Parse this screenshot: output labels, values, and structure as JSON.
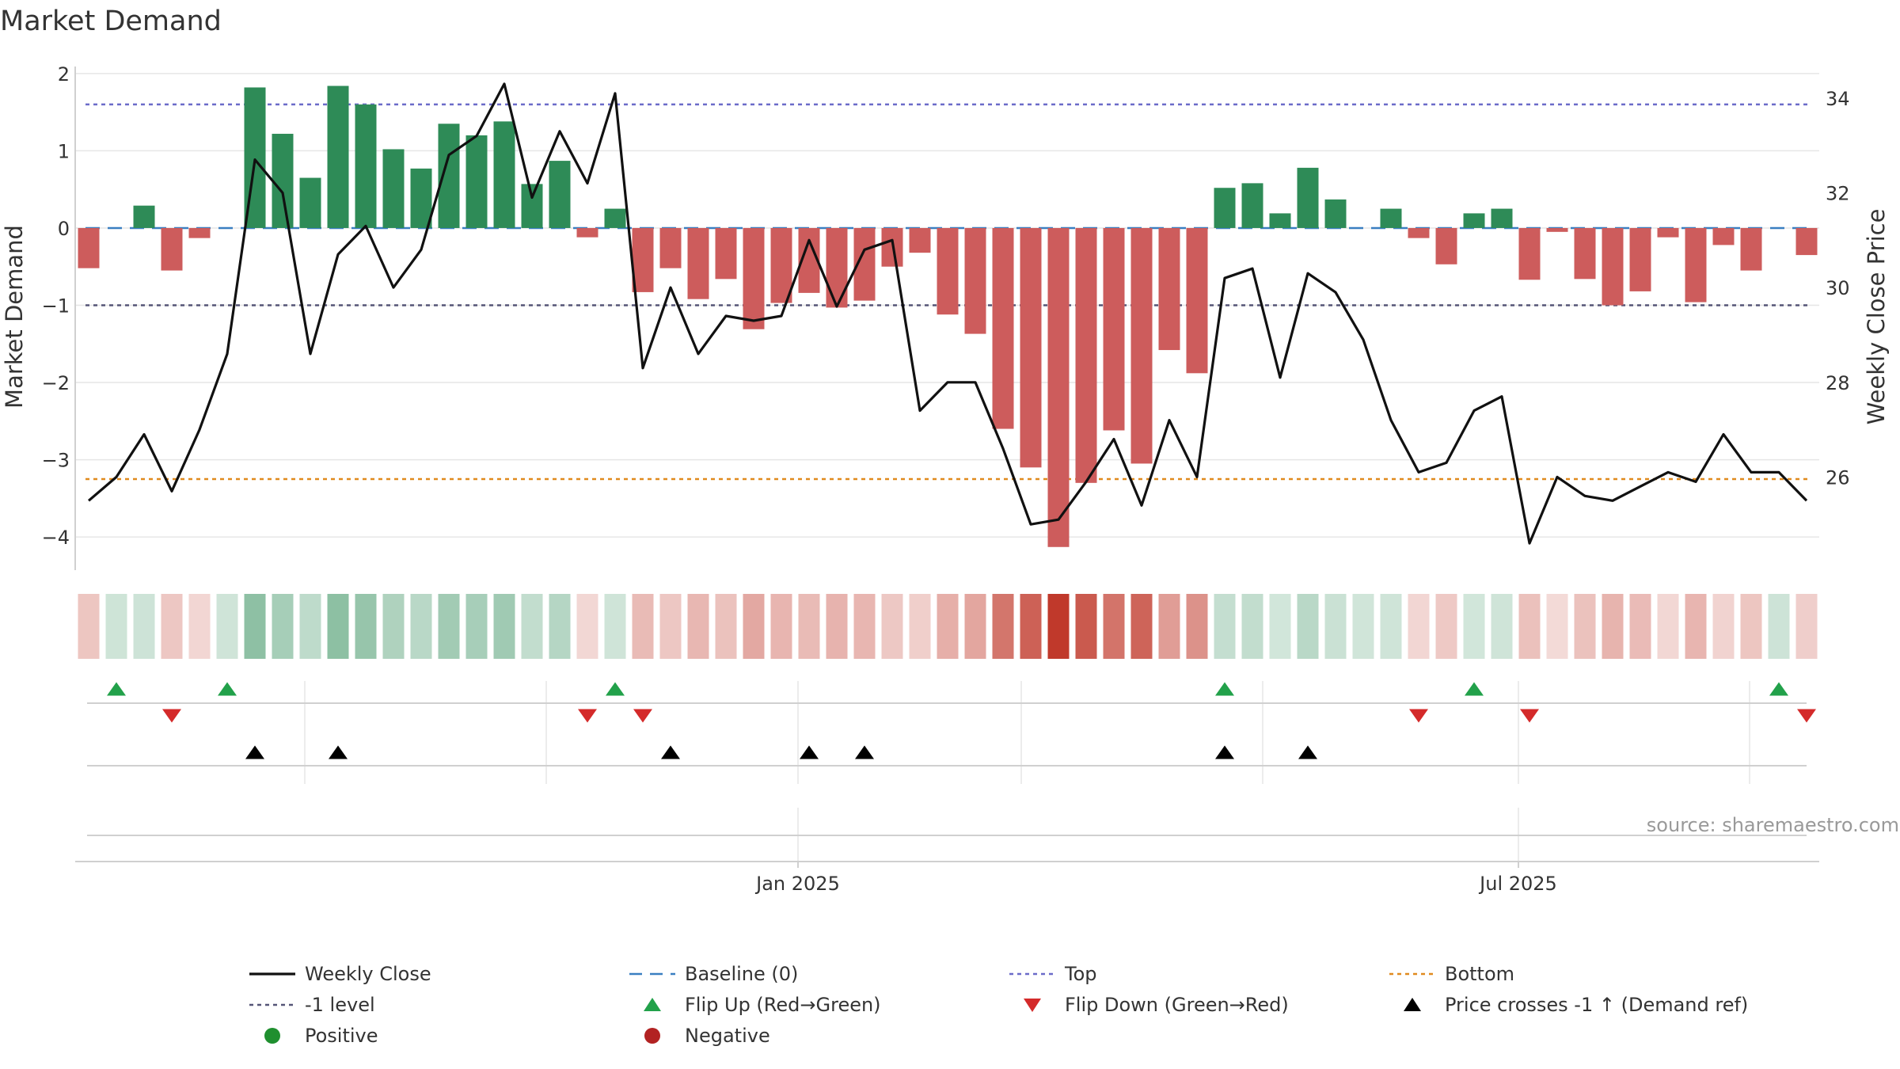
{
  "chart_data": {
    "type": "bar+line",
    "title": "Market Demand",
    "ylabel_left": "Market Demand",
    "ylabel_right": "Weekly Close Price",
    "ylim_left": [
      -4.45,
      2.05
    ],
    "ylim_right": [
      24.0,
      34.6
    ],
    "yticks_left": [
      2,
      1,
      0,
      -1,
      -2,
      -3,
      -4
    ],
    "ytick_labels_left": [
      "2",
      "1",
      "0",
      "−1",
      "−2",
      "−3",
      "−4"
    ],
    "yticks_right": [
      34,
      32,
      30,
      28,
      26
    ],
    "ytick_labels_right": [
      "34",
      "32",
      "30",
      "28",
      "26"
    ],
    "x_ticks": [
      {
        "label": "Jan 2025",
        "week": 25.6
      },
      {
        "label": "Jul 2025",
        "week": 51.6
      }
    ],
    "ref_lines": {
      "top": 1.6,
      "bottom": -3.25,
      "minus_one": -1,
      "baseline": 0
    },
    "demand": [
      -0.52,
      0.0,
      0.29,
      -0.55,
      -0.13,
      0.0,
      1.82,
      1.22,
      0.65,
      1.84,
      1.6,
      1.02,
      0.77,
      1.35,
      1.2,
      1.38,
      0.57,
      0.87,
      -0.12,
      0.25,
      -0.83,
      -0.52,
      -0.92,
      -0.66,
      -1.31,
      -0.97,
      -0.84,
      -1.03,
      -0.94,
      -0.5,
      -0.32,
      -1.12,
      -1.37,
      -2.6,
      -3.1,
      -4.13,
      -3.3,
      -2.62,
      -3.05,
      -1.58,
      -1.88,
      0.52,
      0.58,
      0.19,
      0.78,
      0.37,
      0.0,
      0.25,
      -0.13,
      -0.47,
      0.19,
      0.25,
      -0.67,
      -0.05,
      -0.66,
      -1.0,
      -0.82,
      -0.12,
      -0.96,
      -0.22,
      -0.55,
      0.0,
      -0.35
    ],
    "weekly_close": [
      25.5,
      26.0,
      26.9,
      25.7,
      27.0,
      28.6,
      32.7,
      32.0,
      28.6,
      30.7,
      31.3,
      30.0,
      30.8,
      32.8,
      33.2,
      34.3,
      31.9,
      33.3,
      32.2,
      34.1,
      28.3,
      30.0,
      28.6,
      29.4,
      29.3,
      29.4,
      31.0,
      29.6,
      30.8,
      31.0,
      27.4,
      28.0,
      28.0,
      26.6,
      25.0,
      25.1,
      25.9,
      26.8,
      25.4,
      27.2,
      26.0,
      30.2,
      30.4,
      28.1,
      30.3,
      29.9,
      28.9,
      27.2,
      26.1,
      26.3,
      27.4,
      27.7,
      24.6,
      26.0,
      25.6,
      25.5,
      25.8,
      26.1,
      25.9,
      26.9,
      26.1,
      26.1,
      25.5
    ],
    "heatmap_strip": [
      -0.55,
      0.28,
      0.29,
      -0.52,
      -0.13,
      0.25,
      1.82,
      1.22,
      0.65,
      1.84,
      1.6,
      1.02,
      0.77,
      1.35,
      1.2,
      1.38,
      0.57,
      0.87,
      -0.12,
      0.25,
      -0.83,
      -0.52,
      -0.92,
      -0.66,
      -1.31,
      -0.97,
      -0.84,
      -1.03,
      -0.94,
      -0.5,
      -0.32,
      -1.12,
      -1.37,
      -2.6,
      -3.1,
      -4.13,
      -3.3,
      -2.62,
      -3.05,
      -1.58,
      -1.88,
      0.52,
      0.58,
      0.19,
      0.78,
      0.37,
      0.22,
      0.25,
      -0.13,
      -0.47,
      0.19,
      0.25,
      -0.67,
      -0.05,
      -0.66,
      -1.0,
      -0.82,
      -0.12,
      -0.96,
      -0.22,
      -0.55,
      0.3,
      -0.35
    ],
    "flip_up_weeks": [
      1,
      5,
      19,
      41,
      50,
      61
    ],
    "flip_down_weeks": [
      3,
      18,
      20,
      48,
      52,
      62
    ],
    "price_cross_weeks": [
      6,
      9,
      21,
      26,
      28,
      41,
      44
    ],
    "source": "source: sharemaestro.com",
    "legend": [
      {
        "key": "weekly_close",
        "label": "Weekly Close"
      },
      {
        "key": "baseline",
        "label": "Baseline (0)"
      },
      {
        "key": "top",
        "label": "Top"
      },
      {
        "key": "bottom",
        "label": "Bottom"
      },
      {
        "key": "minus_one",
        "label": "-1 level"
      },
      {
        "key": "flip_up",
        "label": "Flip Up (Red→Green)"
      },
      {
        "key": "flip_down",
        "label": "Flip Down (Green→Red)"
      },
      {
        "key": "price_cross",
        "label": "Price crosses -1 ↑ (Demand ref)"
      },
      {
        "key": "positive",
        "label": "Positive"
      },
      {
        "key": "negative",
        "label": "Negative"
      }
    ]
  },
  "colors": {
    "positive_bar": "#2e8b57",
    "negative_bar": "#cd5c5c",
    "line": "#111111",
    "baseline": "#3a7fc1",
    "top": "#6b6bc9",
    "bottom": "#e08a1e",
    "minus_one": "#555577",
    "flip_up": "#22a14a",
    "flip_down": "#d42a2a",
    "price_cross": "#000000",
    "positive_dot": "#1f8f2f",
    "negative_dot": "#b22222",
    "heat_pos": "#2e8b57",
    "heat_neg": "#c0392b"
  }
}
